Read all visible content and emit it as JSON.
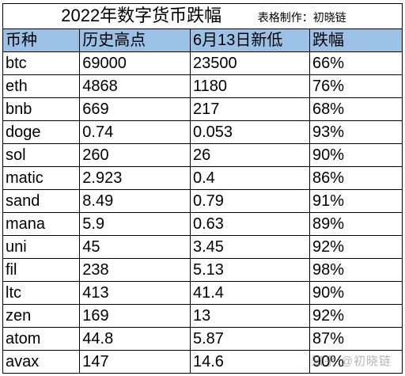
{
  "title": "2022年数字货币跌幅",
  "credit": "表格制作：初晓链",
  "headers": [
    "币种",
    "历史高点",
    "6月13日新低",
    "跌幅"
  ],
  "rows": [
    [
      "btc",
      "69000",
      "23500",
      "66%"
    ],
    [
      "eth",
      "4868",
      "1180",
      "76%"
    ],
    [
      "bnb",
      "669",
      "217",
      "68%"
    ],
    [
      "doge",
      "0.74",
      "0.053",
      "93%"
    ],
    [
      "sol",
      "260",
      "26",
      "90%"
    ],
    [
      "matic",
      "2.923",
      "0.4",
      "86%"
    ],
    [
      "sand",
      "8.49",
      "0.79",
      "91%"
    ],
    [
      "mana",
      "5.9",
      "0.63",
      "89%"
    ],
    [
      "uni",
      "45",
      "3.45",
      "92%"
    ],
    [
      "fil",
      "238",
      "5.13",
      "98%"
    ],
    [
      "ltc",
      "413",
      "41.4",
      "90%"
    ],
    [
      "zen",
      "169",
      "13",
      "92%"
    ],
    [
      "atom",
      "44.8",
      "5.87",
      "87%"
    ],
    [
      "avax",
      "147",
      "14.6",
      "90%"
    ]
  ],
  "watermark": "知乎 @初晓链",
  "colors": {
    "header_bg": "#9bc2e6",
    "border": "#000000"
  }
}
